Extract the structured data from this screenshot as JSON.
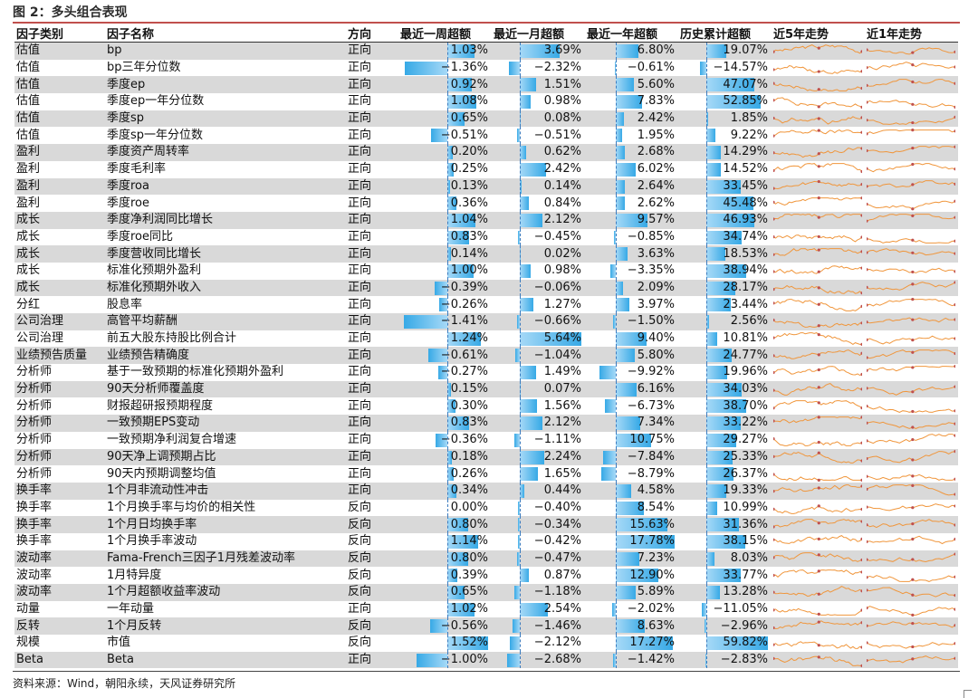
{
  "title": "图 2：多头组合表现",
  "headers": [
    "因子类别",
    "因子名称",
    "方向",
    "最近一周超额",
    "最近一月超额",
    "最近一年超额",
    "历史累计超额",
    "近5年走势",
    "近1年走势"
  ],
  "source": "资料来源：Wind，朝阳永续，天风证券研究所",
  "colors": {
    "bar": "#36a9e6",
    "spark": "#f0963c",
    "row_shade": "#d9d9d9",
    "title_rule": "#c0504d"
  },
  "bar_max": [
    1.52,
    5.64,
    17.78,
    59.82
  ],
  "rows": [
    {
      "cat": "估值",
      "name": "bp",
      "dir": "正向",
      "w": "1.03%",
      "m": "3.69%",
      "y": "6.80%",
      "h": "19.07%"
    },
    {
      "cat": "估值",
      "name": "bp三年分位数",
      "dir": "正向",
      "w": "−1.36%",
      "m": "−2.32%",
      "y": "−0.61%",
      "h": "−14.57%"
    },
    {
      "cat": "估值",
      "name": "季度ep",
      "dir": "正向",
      "w": "0.92%",
      "m": "1.51%",
      "y": "5.60%",
      "h": "47.07%"
    },
    {
      "cat": "估值",
      "name": "季度ep一年分位数",
      "dir": "正向",
      "w": "1.08%",
      "m": "0.98%",
      "y": "7.83%",
      "h": "52.85%"
    },
    {
      "cat": "估值",
      "name": "季度sp",
      "dir": "正向",
      "w": "0.65%",
      "m": "0.08%",
      "y": "2.42%",
      "h": "1.85%"
    },
    {
      "cat": "估值",
      "name": "季度sp一年分位数",
      "dir": "正向",
      "w": "−0.51%",
      "m": "−0.51%",
      "y": "1.95%",
      "h": "9.22%"
    },
    {
      "cat": "盈利",
      "name": "季度资产周转率",
      "dir": "正向",
      "w": "0.20%",
      "m": "0.62%",
      "y": "2.68%",
      "h": "14.29%"
    },
    {
      "cat": "盈利",
      "name": "季度毛利率",
      "dir": "正向",
      "w": "0.25%",
      "m": "2.42%",
      "y": "6.02%",
      "h": "14.52%"
    },
    {
      "cat": "盈利",
      "name": "季度roa",
      "dir": "正向",
      "w": "0.13%",
      "m": "0.14%",
      "y": "2.64%",
      "h": "33.45%"
    },
    {
      "cat": "盈利",
      "name": "季度roe",
      "dir": "正向",
      "w": "0.36%",
      "m": "0.84%",
      "y": "2.62%",
      "h": "45.48%"
    },
    {
      "cat": "成长",
      "name": "季度净利润同比增长",
      "dir": "正向",
      "w": "1.04%",
      "m": "2.12%",
      "y": "9.57%",
      "h": "46.93%"
    },
    {
      "cat": "成长",
      "name": "季度roe同比",
      "dir": "正向",
      "w": "0.83%",
      "m": "−0.45%",
      "y": "−0.85%",
      "h": "34.74%"
    },
    {
      "cat": "成长",
      "name": "季度营收同比增长",
      "dir": "正向",
      "w": "0.14%",
      "m": "0.02%",
      "y": "3.63%",
      "h": "18.53%"
    },
    {
      "cat": "成长",
      "name": "标准化预期外盈利",
      "dir": "正向",
      "w": "1.00%",
      "m": "0.98%",
      "y": "−3.35%",
      "h": "38.94%"
    },
    {
      "cat": "成长",
      "name": "标准化预期外收入",
      "dir": "正向",
      "w": "−0.39%",
      "m": "−0.06%",
      "y": "2.09%",
      "h": "28.17%"
    },
    {
      "cat": "分红",
      "name": "股息率",
      "dir": "正向",
      "w": "−0.26%",
      "m": "1.27%",
      "y": "3.97%",
      "h": "23.44%"
    },
    {
      "cat": "公司治理",
      "name": "高管平均薪酬",
      "dir": "正向",
      "w": "−1.41%",
      "m": "−0.66%",
      "y": "−1.50%",
      "h": "2.56%"
    },
    {
      "cat": "公司治理",
      "name": "前五大股东持股比例合计",
      "dir": "正向",
      "w": "1.24%",
      "m": "5.64%",
      "y": "9.40%",
      "h": "10.81%"
    },
    {
      "cat": "业绩预告质量",
      "name": "业绩预告精确度",
      "dir": "正向",
      "w": "−0.61%",
      "m": "−1.04%",
      "y": "5.80%",
      "h": "24.77%"
    },
    {
      "cat": "分析师",
      "name": "基于一致预期的标准化预期外盈利",
      "dir": "正向",
      "w": "−0.27%",
      "m": "1.49%",
      "y": "−9.92%",
      "h": "19.96%"
    },
    {
      "cat": "分析师",
      "name": "90天分析师覆盖度",
      "dir": "正向",
      "w": "0.15%",
      "m": "0.07%",
      "y": "6.16%",
      "h": "34.03%"
    },
    {
      "cat": "分析师",
      "name": "财报超研报预期程度",
      "dir": "正向",
      "w": "0.30%",
      "m": "1.56%",
      "y": "−6.73%",
      "h": "38.70%"
    },
    {
      "cat": "分析师",
      "name": "一致预期EPS变动",
      "dir": "正向",
      "w": "0.83%",
      "m": "2.12%",
      "y": "7.34%",
      "h": "33.22%"
    },
    {
      "cat": "分析师",
      "name": "一致预期净利润复合增速",
      "dir": "正向",
      "w": "−0.36%",
      "m": "−1.11%",
      "y": "10.75%",
      "h": "29.27%"
    },
    {
      "cat": "分析师",
      "name": "90天净上调预期占比",
      "dir": "正向",
      "w": "0.18%",
      "m": "2.24%",
      "y": "−7.84%",
      "h": "25.33%"
    },
    {
      "cat": "分析师",
      "name": "90天内预期调整均值",
      "dir": "正向",
      "w": "0.26%",
      "m": "1.65%",
      "y": "−8.79%",
      "h": "26.37%"
    },
    {
      "cat": "换手率",
      "name": "1个月非流动性冲击",
      "dir": "正向",
      "w": "0.34%",
      "m": "0.44%",
      "y": "4.58%",
      "h": "19.33%"
    },
    {
      "cat": "换手率",
      "name": "1个月换手率与均价的相关性",
      "dir": "反向",
      "w": "0.00%",
      "m": "−0.40%",
      "y": "8.54%",
      "h": "10.99%"
    },
    {
      "cat": "换手率",
      "name": "1个月日均换手率",
      "dir": "反向",
      "w": "0.80%",
      "m": "−0.34%",
      "y": "15.63%",
      "h": "31.36%"
    },
    {
      "cat": "换手率",
      "name": "1个月换手率波动",
      "dir": "反向",
      "w": "1.14%",
      "m": "−0.42%",
      "y": "17.78%",
      "h": "38.15%"
    },
    {
      "cat": "波动率",
      "name": "Fama-French三因子1月残差波动率",
      "dir": "反向",
      "w": "0.80%",
      "m": "−0.47%",
      "y": "7.23%",
      "h": "8.03%"
    },
    {
      "cat": "波动率",
      "name": "1月特异度",
      "dir": "反向",
      "w": "0.39%",
      "m": "0.87%",
      "y": "12.90%",
      "h": "33.77%"
    },
    {
      "cat": "波动率",
      "name": "1个月超额收益率波动",
      "dir": "反向",
      "w": "0.65%",
      "m": "−1.18%",
      "y": "5.89%",
      "h": "13.28%"
    },
    {
      "cat": "动量",
      "name": "一年动量",
      "dir": "正向",
      "w": "1.02%",
      "m": "2.54%",
      "y": "−2.02%",
      "h": "−11.05%"
    },
    {
      "cat": "反转",
      "name": "1个月反转",
      "dir": "反向",
      "w": "−0.56%",
      "m": "−1.46%",
      "y": "8.63%",
      "h": "−2.96%"
    },
    {
      "cat": "规模",
      "name": "市值",
      "dir": "反向",
      "w": "1.52%",
      "m": "−2.12%",
      "y": "17.27%",
      "h": "59.82%"
    },
    {
      "cat": "Beta",
      "name": "Beta",
      "dir": "正向",
      "w": "−1.00%",
      "m": "−2.68%",
      "y": "−1.42%",
      "h": "−2.83%"
    }
  ]
}
